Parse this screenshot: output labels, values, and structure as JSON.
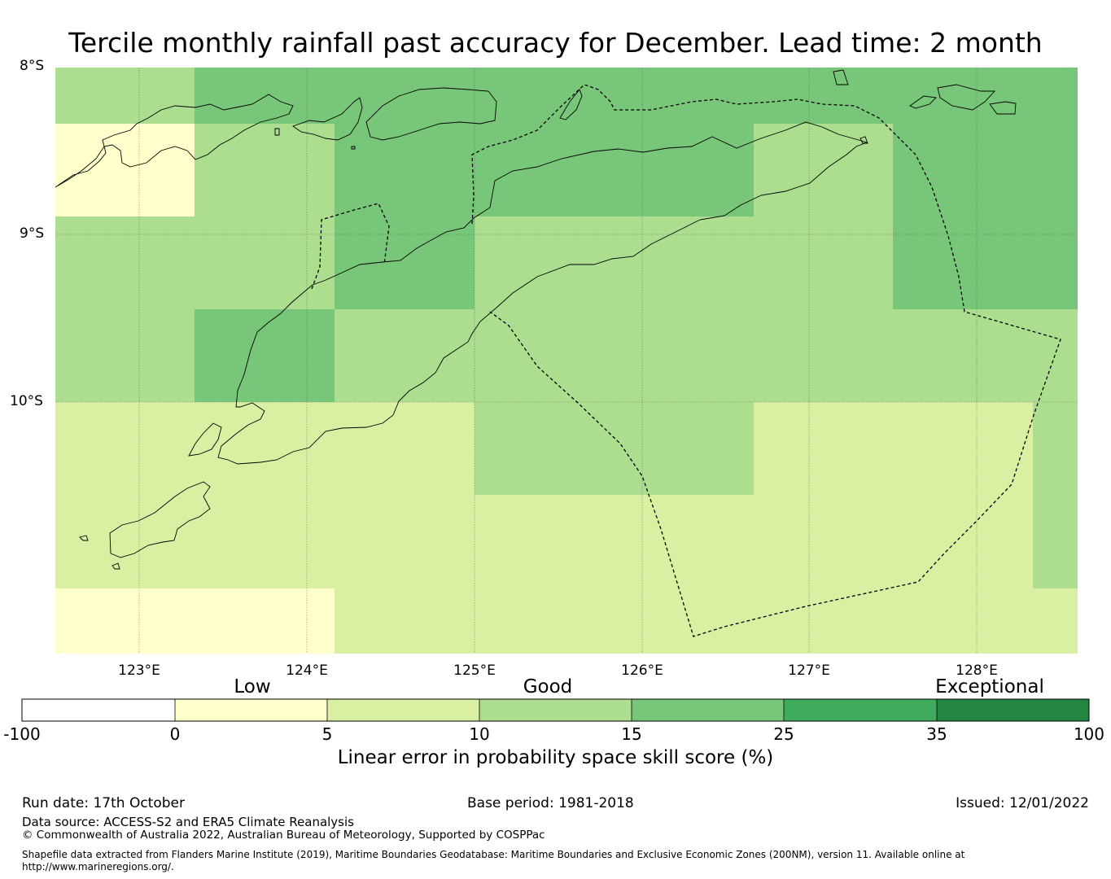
{
  "title": "Tercile monthly rainfall past accuracy for December. Lead time: 2 month",
  "map": {
    "lat_labels": [
      "8°S",
      "9°S",
      "10°S"
    ],
    "lon_labels": [
      "123°E",
      "124°E",
      "125°E",
      "126°E",
      "127°E",
      "128°E"
    ],
    "extent": {
      "lon_min": 122.5,
      "lon_max": 128.6,
      "lat_min": -11.5,
      "lat_max": -8.0
    }
  },
  "colorbar": {
    "categories": [
      "Low",
      "Good",
      "Exceptional"
    ],
    "ticks": [
      "-100",
      "0",
      "5",
      "10",
      "15",
      "25",
      "35",
      "100"
    ],
    "colors": [
      "#ffffff",
      "#ffffcc",
      "#d9f0a3",
      "#addd8e",
      "#78c679",
      "#41ab5d",
      "#238443"
    ],
    "label": "Linear error in probability space skill score (%)"
  },
  "footer": {
    "run_date": "Run date: 17th October",
    "base_period": "Base period: 1981-2018",
    "issued": "Issued: 12/01/2022",
    "data_source": "Data source: ACCESS-S2 and ERA5 Climate Reanalysis",
    "copyright": "© Commonwealth of Australia 2022, Australian Bureau of Meteorology, Supported by COSPPac",
    "shapefile_line1": "Shapefile data extracted from Flanders Marine Institute (2019), Maritime Boundaries Geodatabase: Maritime Boundaries and Exclusive Economic Zones (200NM), version 11. Available online at",
    "shapefile_line2": "http://www.marineregions.org/."
  }
}
